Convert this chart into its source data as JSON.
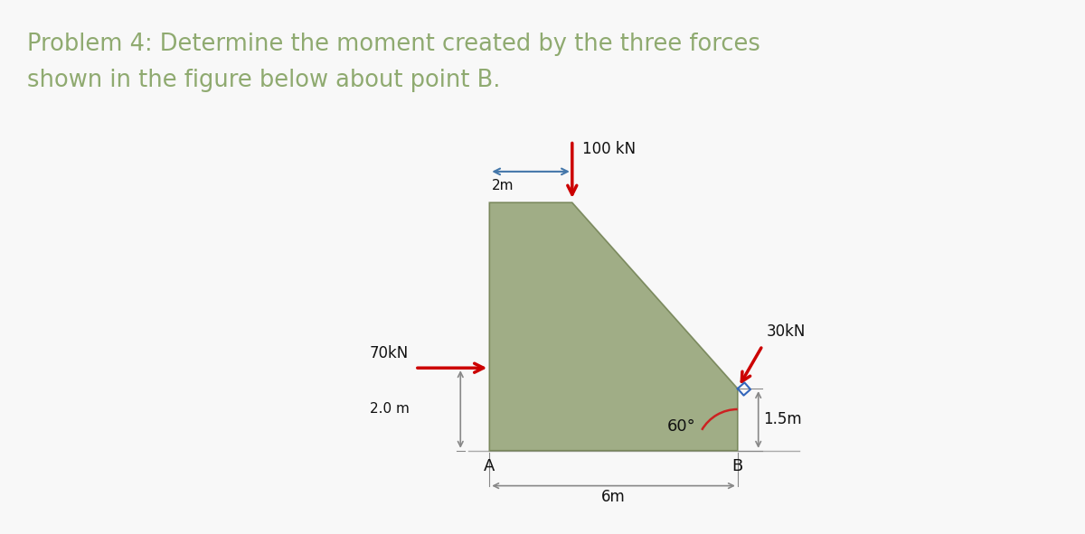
{
  "title_line1": "Problem 4: Determine the moment created by the three forces",
  "title_line2": "shown in the figure below about point B.",
  "title_color": "#8faa70",
  "title_fontsize": 18.5,
  "bg_color": "#f8f8f8",
  "shape_color": "#8a9a6a",
  "shape_alpha": 0.8,
  "shape_edge_color": "#6a7a4a",
  "force_100kN_label": "100 kN",
  "force_70kN_label": "70kN",
  "force_30kN_label": "30kN",
  "angle_label": "60°",
  "dim_2m_horiz": "2m",
  "dim_6m": "6m",
  "dim_2m_vert": "2.0 m",
  "dim_1p5m": "1.5m",
  "arrow_color": "#cc0000",
  "dim_arrow_color": "#4477aa",
  "gray_arrow_color": "#888888",
  "annotation_color": "#111111",
  "blue_sq_color": "#3366bb",
  "arc_color": "#cc2222",
  "A_x": 0.0,
  "A_y": 0.0,
  "B_x": 6.0,
  "B_y": 0.0,
  "TL_x": 0.0,
  "TL_y": 6.0,
  "TR_x": 2.0,
  "TR_y": 6.0,
  "SP_x": 6.0,
  "SP_y": 1.5,
  "xlim_min": -3.0,
  "xlim_max": 9.5,
  "ylim_min": -1.5,
  "ylim_max": 7.8
}
